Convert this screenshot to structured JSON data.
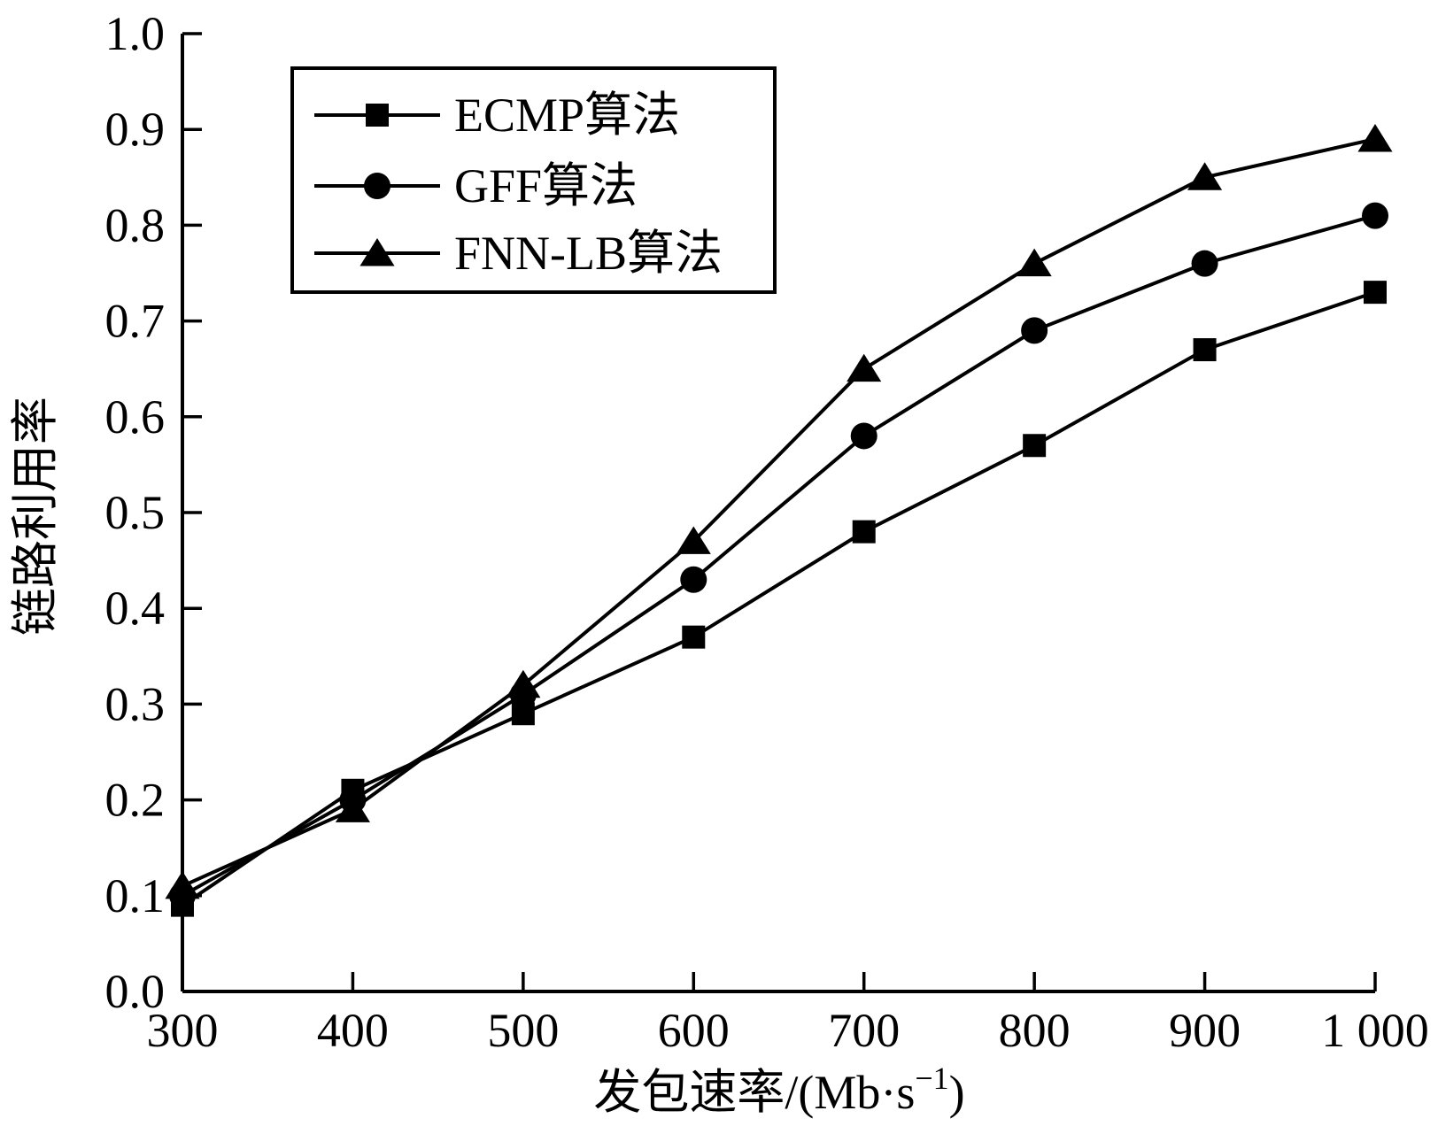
{
  "chart_data": {
    "type": "line",
    "title": "",
    "xlabel": "发包速率/(Mb·s",
    "xlabel_sup": "−1",
    "xlabel_suffix": ")",
    "ylabel": "链路利用率",
    "xlim": [
      300,
      1000
    ],
    "ylim": [
      0.0,
      1.0
    ],
    "x": [
      300,
      400,
      500,
      600,
      700,
      800,
      900,
      1000
    ],
    "x_tick_labels": [
      "300",
      "400",
      "500",
      "600",
      "700",
      "800",
      "900",
      "1 000"
    ],
    "y_ticks": [
      0.0,
      0.1,
      0.2,
      0.3,
      0.4,
      0.5,
      0.6,
      0.7,
      0.8,
      0.9,
      1.0
    ],
    "y_tick_labels": [
      "0.0",
      "0.1",
      "0.2",
      "0.3",
      "0.4",
      "0.5",
      "0.6",
      "0.7",
      "0.8",
      "0.9",
      "1.0"
    ],
    "grid": false,
    "legend_position": "top-left",
    "series": [
      {
        "name": "ECMP算法",
        "marker": "square",
        "values": [
          0.09,
          0.21,
          0.29,
          0.37,
          0.48,
          0.57,
          0.67,
          0.73
        ]
      },
      {
        "name": "GFF算法",
        "marker": "circle",
        "values": [
          0.1,
          0.2,
          0.31,
          0.43,
          0.58,
          0.69,
          0.76,
          0.81
        ]
      },
      {
        "name": "FNN-LB算法",
        "marker": "triangle",
        "values": [
          0.11,
          0.19,
          0.32,
          0.47,
          0.65,
          0.76,
          0.85,
          0.89
        ]
      }
    ]
  }
}
